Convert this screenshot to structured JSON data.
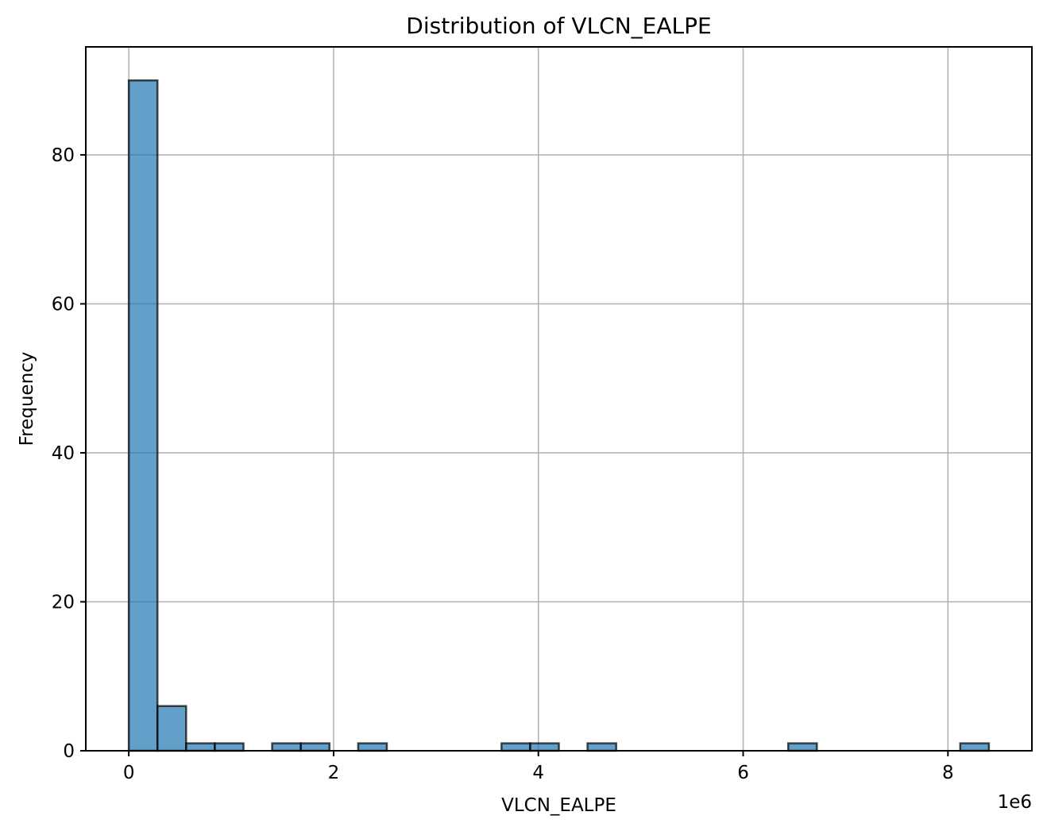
{
  "chart_data": {
    "type": "bar",
    "title": "Distribution of VLCN_EALPE",
    "xlabel": "VLCN_EALPE",
    "ylabel": "Frequency",
    "x_offset_text": "1e6",
    "x_multiplier": 1000000,
    "xlim": [
      -0.42,
      8.82
    ],
    "ylim": [
      0,
      94.5
    ],
    "x_ticks": [
      0,
      2,
      4,
      6,
      8
    ],
    "y_ticks": [
      0,
      20,
      40,
      60,
      80
    ],
    "grid": true,
    "bin_edges": [
      0,
      0.28,
      0.56,
      0.84,
      1.12,
      1.4,
      1.68,
      1.96,
      2.24,
      2.52,
      2.8,
      3.08,
      3.36,
      3.64,
      3.92,
      4.2,
      4.48,
      4.76,
      5.04,
      5.32,
      5.6,
      5.88,
      6.16,
      6.44,
      6.72,
      7.0,
      7.28,
      7.56,
      7.84,
      8.12,
      8.4
    ],
    "counts": [
      90,
      6,
      1,
      1,
      0,
      1,
      1,
      0,
      1,
      0,
      0,
      0,
      0,
      1,
      1,
      0,
      1,
      0,
      0,
      0,
      0,
      0,
      0,
      1,
      0,
      0,
      0,
      0,
      0,
      1
    ],
    "bar_color": "#1f77b4"
  }
}
